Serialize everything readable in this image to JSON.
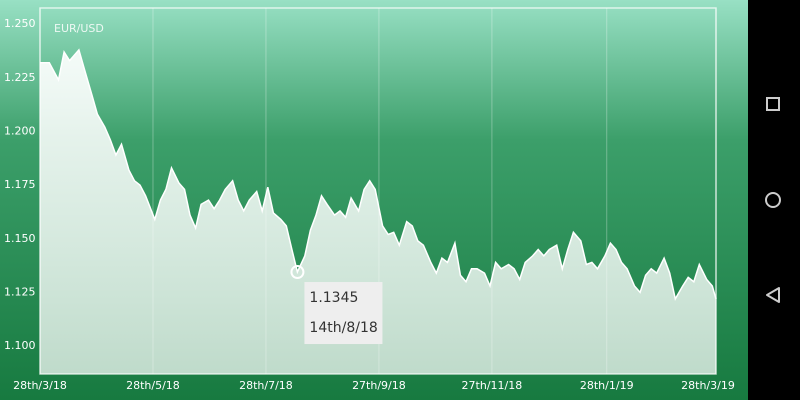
{
  "chart_data": {
    "type": "area",
    "title": "EUR/USD",
    "xlim": [
      0,
      365
    ],
    "ylim": [
      1.087,
      1.2575
    ],
    "xticks": [
      {
        "value": 0,
        "label": "28th/3/18"
      },
      {
        "value": 61,
        "label": "28th/5/18"
      },
      {
        "value": 122,
        "label": "28th/7/18"
      },
      {
        "value": 183,
        "label": "27th/9/18"
      },
      {
        "value": 244,
        "label": "27th/11/18"
      },
      {
        "value": 306,
        "label": "28th/1/19"
      },
      {
        "value": 365,
        "label": "28th/3/19"
      }
    ],
    "yticks": [
      {
        "value": 1.25,
        "label": "1.250"
      },
      1.225,
      {
        "value": 1.2,
        "label": "1.200"
      },
      1.175,
      {
        "value": 1.15,
        "label": "1.150"
      },
      1.125,
      {
        "value": 1.1,
        "label": "1.100"
      }
    ],
    "grid": "x",
    "color": "#ffffff",
    "x": [
      0,
      5,
      10,
      13,
      16,
      21,
      24,
      28,
      31,
      35,
      38,
      41,
      44,
      48,
      51,
      54,
      57,
      62,
      65,
      68,
      71,
      75,
      78,
      81,
      84,
      87,
      91,
      94,
      97,
      100,
      104,
      107,
      110,
      113,
      117,
      120,
      123,
      126,
      130,
      133,
      136,
      139,
      143,
      146,
      149,
      152,
      155,
      159,
      162,
      165,
      168,
      172,
      175,
      178,
      181,
      185,
      188,
      191,
      194,
      198,
      201,
      204,
      207,
      211,
      214,
      217,
      220,
      224,
      227,
      230,
      233,
      236,
      240,
      243,
      246,
      249,
      253,
      256,
      259,
      262,
      266,
      269,
      272,
      275,
      279,
      282,
      285,
      288,
      292,
      295,
      298,
      301,
      305,
      308,
      311,
      314,
      317,
      321,
      324,
      327,
      330,
      333,
      337,
      340,
      343,
      347,
      350,
      353,
      356,
      360,
      363,
      365
    ],
    "values": [
      1.232,
      1.232,
      1.224,
      1.237,
      1.233,
      1.238,
      1.229,
      1.217,
      1.208,
      1.202,
      1.196,
      1.189,
      1.194,
      1.182,
      1.177,
      1.175,
      1.17,
      1.159,
      1.168,
      1.173,
      1.183,
      1.176,
      1.173,
      1.161,
      1.155,
      1.166,
      1.168,
      1.164,
      1.168,
      1.173,
      1.177,
      1.168,
      1.163,
      1.168,
      1.172,
      1.163,
      1.174,
      1.162,
      1.159,
      1.156,
      1.145,
      1.1345,
      1.142,
      1.154,
      1.161,
      1.17,
      1.166,
      1.161,
      1.163,
      1.16,
      1.169,
      1.163,
      1.173,
      1.177,
      1.173,
      1.156,
      1.152,
      1.153,
      1.147,
      1.158,
      1.156,
      1.149,
      1.147,
      1.139,
      1.134,
      1.141,
      1.139,
      1.148,
      1.133,
      1.13,
      1.136,
      1.136,
      1.134,
      1.128,
      1.139,
      1.136,
      1.138,
      1.136,
      1.131,
      1.139,
      1.142,
      1.145,
      1.142,
      1.145,
      1.147,
      1.136,
      1.145,
      1.153,
      1.149,
      1.138,
      1.139,
      1.136,
      1.142,
      1.148,
      1.145,
      1.139,
      1.136,
      1.128,
      1.125,
      1.133,
      1.136,
      1.134,
      1.141,
      1.134,
      1.122,
      1.128,
      1.132,
      1.13,
      1.138,
      1.131,
      1.128,
      1.122
    ],
    "tooltip": {
      "x": 139,
      "value": 1.1345,
      "label": "14th/8/18"
    }
  }
}
